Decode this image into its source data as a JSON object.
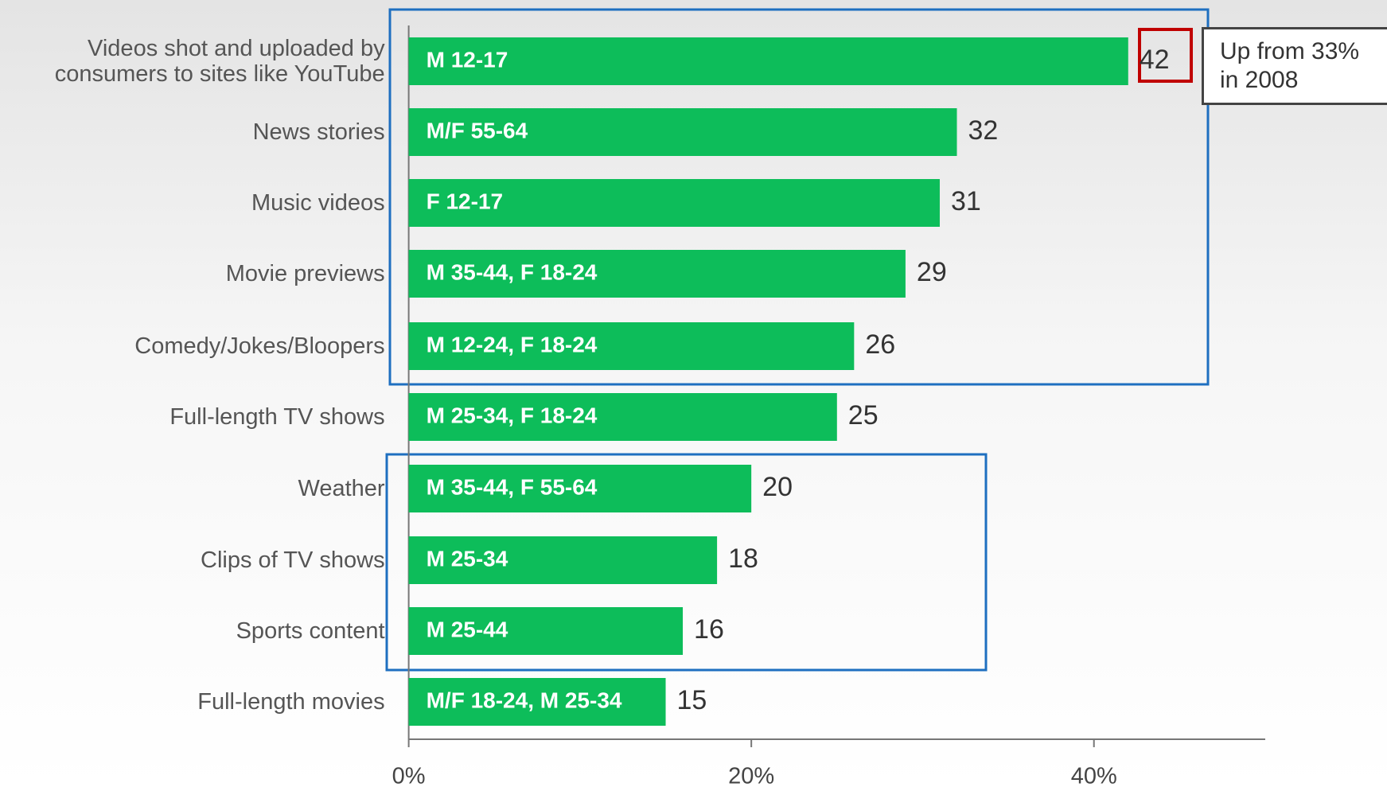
{
  "chart_data": {
    "type": "bar",
    "orientation": "horizontal",
    "categories": [
      "Videos shot and uploaded by consumers to sites like YouTube",
      "News stories",
      "Music videos",
      "Movie previews",
      "Comedy/Jokes/Bloopers",
      "Full-length TV shows",
      "Weather",
      "Clips of TV shows",
      "Sports content",
      "Full-length movies"
    ],
    "values": [
      42,
      32,
      31,
      29,
      26,
      25,
      20,
      18,
      16,
      15
    ],
    "bar_labels": [
      "M 12-17",
      "M/F 55-64",
      "F 12-17",
      "M 35-44, F 18-24",
      "M 12-24, F 18-24",
      "M 25-34, F 18-24",
      "M 35-44, F 55-64",
      "M 25-34",
      "M 25-44",
      "M/F 18-24, M 25-34"
    ],
    "color": "#0dbd5a",
    "xlim": [
      0,
      50
    ],
    "xticks": [
      {
        "value": 0,
        "label": "0%"
      },
      {
        "value": 20,
        "label": "20%"
      },
      {
        "value": 40,
        "label": "40%"
      }
    ],
    "annotation": "Up from 33% in 2008"
  }
}
